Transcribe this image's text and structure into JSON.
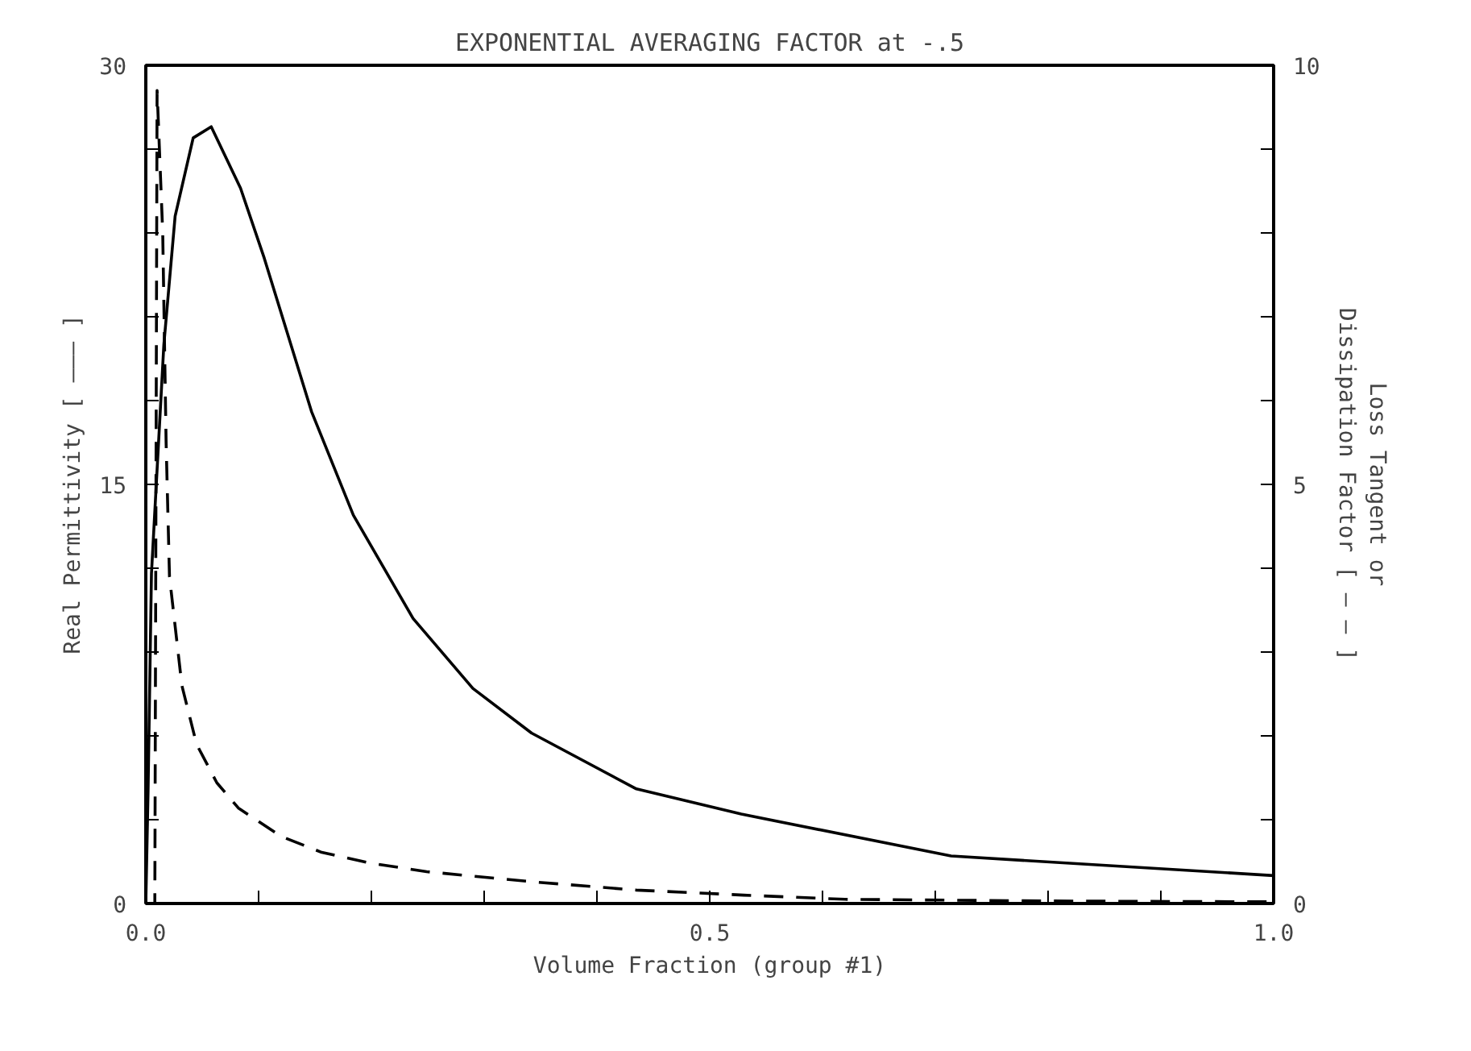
{
  "chart_data": {
    "type": "line",
    "title": "EXPONENTIAL AVERAGING FACTOR at -.5",
    "xlabel": "Volume Fraction (group #1)",
    "ylabel": "Real Permittivity [ ——— ]",
    "y2label": "Loss Tangent or\nDissipation Factor [ — — ]",
    "xlim": [
      0,
      1
    ],
    "ylim": [
      0,
      30
    ],
    "y2lim": [
      0,
      10
    ],
    "xticks": [
      {
        "value": 0,
        "label": "0.0"
      },
      {
        "value": 0.1,
        "label": null
      },
      {
        "value": 0.2,
        "label": null
      },
      {
        "value": 0.3,
        "label": null
      },
      {
        "value": 0.4,
        "label": null
      },
      {
        "value": 0.5,
        "label": "0.5"
      },
      {
        "value": 0.6,
        "label": null
      },
      {
        "value": 0.7,
        "label": null
      },
      {
        "value": 0.8,
        "label": null
      },
      {
        "value": 0.9,
        "label": null
      },
      {
        "value": 1,
        "label": "1.0"
      }
    ],
    "yticks": [
      0,
      {
        "value": 3,
        "label": null
      },
      {
        "value": 6,
        "label": null
      },
      {
        "value": 9,
        "label": null
      },
      {
        "value": 12,
        "label": null
      },
      15,
      {
        "value": 18,
        "label": null
      },
      {
        "value": 21,
        "label": null
      },
      {
        "value": 24,
        "label": null
      },
      {
        "value": 27,
        "label": null
      },
      30
    ],
    "y2ticks": [
      0,
      {
        "value": 1,
        "label": null
      },
      {
        "value": 2,
        "label": null
      },
      {
        "value": 3,
        "label": null
      },
      {
        "value": 4,
        "label": null
      },
      5,
      {
        "value": 6,
        "label": null
      },
      {
        "value": 7,
        "label": null
      },
      {
        "value": 8,
        "label": null
      },
      {
        "value": 9,
        "label": null
      },
      10
    ],
    "grid": false,
    "series": [
      {
        "color": "#000000",
        "line_style": "solid",
        "x": [
          0,
          0.002,
          0.005,
          0.016,
          0.026,
          0.042,
          0.058,
          0.084,
          0.105,
          0.147,
          0.184,
          0.237,
          0.29,
          0.342,
          0.435,
          0.528,
          0.714,
          1.0
        ],
        "values": [
          0,
          4,
          11.8,
          20.0,
          24.6,
          27.4,
          27.8,
          25.6,
          23.1,
          17.6,
          13.9,
          10.2,
          7.7,
          6.1,
          4.1,
          3.2,
          1.7,
          1.0
        ]
      },
      {
        "color": "#000000",
        "line_style": "dashed",
        "axis": "y2",
        "x": [
          0,
          0.008,
          0.01,
          0.015,
          0.018,
          0.021,
          0.032,
          0.045,
          0.063,
          0.082,
          0.12,
          0.156,
          0.2,
          0.249,
          0.342,
          0.435,
          0.53,
          0.62,
          0.8,
          1.0
        ],
        "values": [
          0,
          0,
          9.7,
          8,
          5.5,
          3.9,
          2.6,
          1.9,
          1.44,
          1.14,
          0.8,
          0.61,
          0.48,
          0.38,
          0.26,
          0.16,
          0.1,
          0.05,
          0.03,
          0.02
        ]
      }
    ]
  }
}
